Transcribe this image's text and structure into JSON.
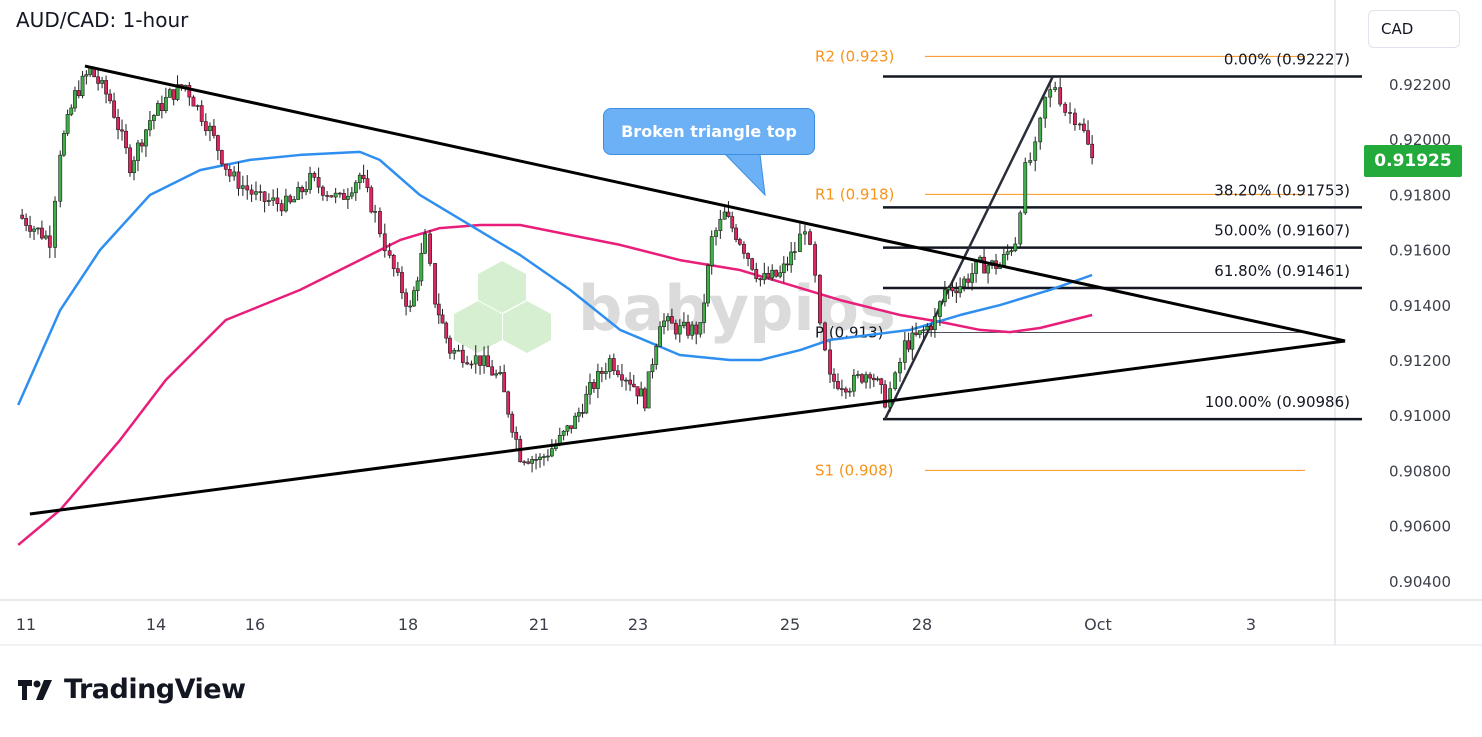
{
  "title": "AUD/CAD: 1-hour",
  "currency_button": "CAD",
  "last_price_label": "0.91925",
  "callout": "Broken triangle top",
  "branding": {
    "watermark": "babypips",
    "logo": "TradingView"
  },
  "colors": {
    "up": "#3fae49",
    "down": "#e0245e",
    "ma_fast": "#2f8ff0",
    "ma_slow": "#e91e7a",
    "pivot": "#f7931a",
    "fib": "#131722",
    "last_price_bg": "#22ab3b",
    "callout_bg": "#6cb0f5"
  },
  "chart_data": {
    "type": "candlestick",
    "title": "AUD/CAD: 1-hour",
    "ylim": [
      0.903,
      0.924
    ],
    "y_ticks": [
      "0.92200",
      "0.92000",
      "0.91800",
      "0.91600",
      "0.91400",
      "0.91200",
      "0.91000",
      "0.90800",
      "0.90600",
      "0.90400"
    ],
    "y_tick_values": [
      0.922,
      0.92,
      0.918,
      0.916,
      0.914,
      0.912,
      0.91,
      0.908,
      0.906,
      0.904
    ],
    "x_ticks": [
      "11",
      "14",
      "16",
      "18",
      "21",
      "23",
      "25",
      "28",
      "Oct",
      "3"
    ],
    "x_tick_days": [
      11,
      14,
      16,
      18,
      21,
      23,
      25,
      28,
      31,
      33
    ],
    "price_path": [
      [
        10.82,
        0.91725
      ],
      [
        11.55,
        0.91635
      ],
      [
        11.79,
        0.91961
      ],
      [
        12.13,
        0.9216
      ],
      [
        12.48,
        0.92251
      ],
      [
        12.94,
        0.92142
      ],
      [
        13.4,
        0.91907
      ],
      [
        13.86,
        0.9207
      ],
      [
        14.28,
        0.9216
      ],
      [
        14.59,
        0.92196
      ],
      [
        15.09,
        0.92033
      ],
      [
        15.49,
        0.9187
      ],
      [
        16.07,
        0.9178
      ],
      [
        16.46,
        0.91762
      ],
      [
        16.72,
        0.91852
      ],
      [
        17.11,
        0.9178
      ],
      [
        17.37,
        0.9187
      ],
      [
        17.57,
        0.91725
      ],
      [
        17.76,
        0.91562
      ],
      [
        18.05,
        0.91381
      ],
      [
        18.39,
        0.91635
      ],
      [
        18.62,
        0.91418
      ],
      [
        18.96,
        0.91236
      ],
      [
        19.65,
        0.912
      ],
      [
        20.11,
        0.91128
      ],
      [
        20.57,
        0.90856
      ],
      [
        21.02,
        0.90838
      ],
      [
        21.42,
        0.9091
      ],
      [
        21.73,
        0.90983
      ],
      [
        22.03,
        0.91091
      ],
      [
        22.43,
        0.912
      ],
      [
        22.84,
        0.91128
      ],
      [
        23.09,
        0.91055
      ],
      [
        23.29,
        0.91345
      ],
      [
        23.55,
        0.91309
      ],
      [
        23.82,
        0.91309
      ],
      [
        23.97,
        0.91635
      ],
      [
        24.14,
        0.91725
      ],
      [
        24.34,
        0.91635
      ],
      [
        24.61,
        0.9149
      ],
      [
        24.87,
        0.91508
      ],
      [
        25.11,
        0.91599
      ],
      [
        25.34,
        0.91689
      ],
      [
        25.57,
        0.9149
      ],
      [
        25.68,
        0.91309
      ],
      [
        25.91,
        0.91128
      ],
      [
        26.36,
        0.9111
      ],
      [
        26.82,
        0.91164
      ],
      [
        27.16,
        0.91055
      ],
      [
        27.39,
        0.91128
      ],
      [
        27.61,
        0.91254
      ],
      [
        27.95,
        0.91291
      ],
      [
        28.22,
        0.91345
      ],
      [
        28.39,
        0.91454
      ],
      [
        28.65,
        0.91472
      ],
      [
        28.99,
        0.91544
      ],
      [
        29.33,
        0.91544
      ],
      [
        29.59,
        0.91635
      ],
      [
        29.76,
        0.91888
      ],
      [
        29.93,
        0.91961
      ],
      [
        30.1,
        0.92142
      ],
      [
        30.27,
        0.92196
      ],
      [
        30.44,
        0.92106
      ],
      [
        30.69,
        0.9207
      ],
      [
        30.9,
        0.91925
      ]
    ],
    "ma_fast": [
      [
        10.82,
        0.91037
      ],
      [
        11.79,
        0.91381
      ],
      [
        12.71,
        0.91599
      ],
      [
        13.86,
        0.91798
      ],
      [
        14.89,
        0.91888
      ],
      [
        15.9,
        0.91925
      ],
      [
        16.59,
        0.91943
      ],
      [
        17.37,
        0.91954
      ],
      [
        17.63,
        0.91925
      ],
      [
        18.27,
        0.91798
      ],
      [
        19.42,
        0.91689
      ],
      [
        20.57,
        0.9158
      ],
      [
        21.63,
        0.91454
      ],
      [
        22.64,
        0.91309
      ],
      [
        23.55,
        0.91218
      ],
      [
        24.21,
        0.912
      ],
      [
        24.61,
        0.912
      ],
      [
        25.23,
        0.91236
      ],
      [
        25.91,
        0.91273
      ],
      [
        26.82,
        0.91291
      ],
      [
        27.73,
        0.91309
      ],
      [
        28.65,
        0.91363
      ],
      [
        29.33,
        0.91399
      ],
      [
        30.18,
        0.91454
      ],
      [
        30.9,
        0.91508
      ]
    ],
    "ma_slow": [
      [
        10.82,
        0.9053
      ],
      [
        11.79,
        0.90657
      ],
      [
        13.17,
        0.9091
      ],
      [
        14.2,
        0.91128
      ],
      [
        15.41,
        0.91345
      ],
      [
        16.59,
        0.91454
      ],
      [
        17.37,
        0.91562
      ],
      [
        17.9,
        0.91635
      ],
      [
        18.73,
        0.91678
      ],
      [
        19.65,
        0.91689
      ],
      [
        20.57,
        0.91689
      ],
      [
        21.63,
        0.91653
      ],
      [
        22.64,
        0.91617
      ],
      [
        23.55,
        0.91562
      ],
      [
        24.34,
        0.91526
      ],
      [
        25.0,
        0.91472
      ],
      [
        26.14,
        0.91417
      ],
      [
        27.5,
        0.91363
      ],
      [
        28.31,
        0.91338
      ],
      [
        28.99,
        0.91309
      ],
      [
        29.5,
        0.91301
      ],
      [
        30.01,
        0.91316
      ],
      [
        30.9,
        0.91363
      ]
    ],
    "triangle": {
      "upper": [
        [
          12.36,
          0.92265
        ],
        [
          34.23,
          0.91269
        ]
      ],
      "lower": [
        [
          11.09,
          0.90642
        ],
        [
          34.23,
          0.91269
        ]
      ]
    },
    "fib_swing": [
      [
        27.16,
        0.90986
      ],
      [
        30.23,
        0.92227
      ]
    ],
    "fib_levels": [
      {
        "label": "0.00% (0.92227)",
        "value": 0.92227
      },
      {
        "label": "38.20% (0.91753)",
        "value": 0.91753
      },
      {
        "label": "50.00% (0.91607)",
        "value": 0.91607
      },
      {
        "label": "61.80% (0.91461)",
        "value": 0.91461
      },
      {
        "label": "100.00% (0.90986)",
        "value": 0.90986
      }
    ],
    "pivots": [
      {
        "label": "R2 (0.923)",
        "value": 0.923,
        "color": "#f7931a"
      },
      {
        "label": "R1 (0.918)",
        "value": 0.918,
        "color": "#f7931a"
      },
      {
        "label": "P (0.913)",
        "value": 0.913,
        "color": "#131722"
      },
      {
        "label": "S1 (0.908)",
        "value": 0.908,
        "color": "#f7931a"
      }
    ],
    "last_price": 0.91925
  }
}
